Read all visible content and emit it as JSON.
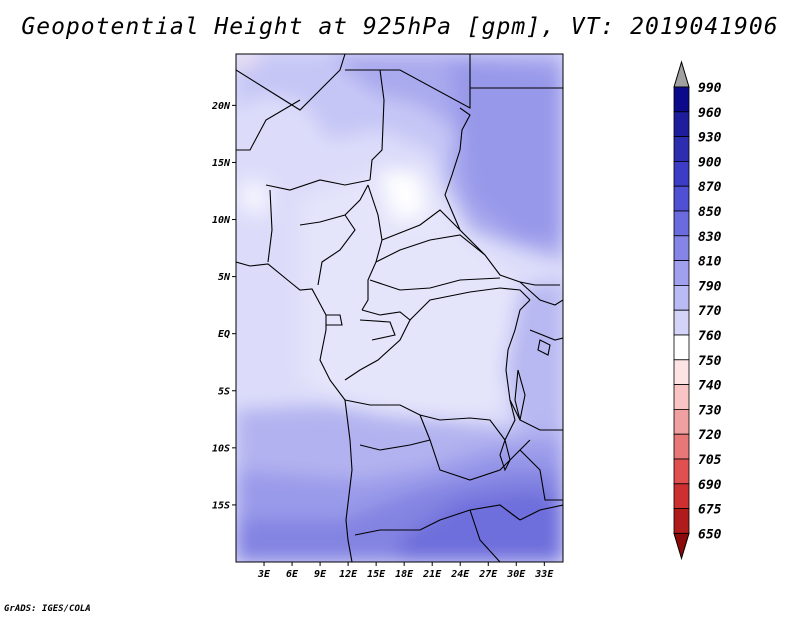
{
  "title": "Geopotential Height at 925hPa [gpm], VT: 2019041906",
  "footer": "GrADS: IGES/COLA",
  "map": {
    "lon_labels": [
      "3E",
      "6E",
      "9E",
      "12E",
      "15E",
      "18E",
      "21E",
      "24E",
      "27E",
      "30E",
      "33E"
    ],
    "lon_values": [
      3,
      6,
      9,
      12,
      15,
      18,
      21,
      24,
      27,
      30,
      33
    ],
    "lat_labels": [
      "20N",
      "15N",
      "10N",
      "5N",
      "EQ",
      "5S",
      "10S",
      "15S"
    ],
    "lat_values": [
      20,
      15,
      10,
      5,
      0,
      -5,
      -10,
      -15
    ],
    "lon_range": [
      0,
      35
    ],
    "lat_range": [
      -20,
      24.5
    ]
  },
  "colorbar": {
    "levels": [
      "990",
      "960",
      "930",
      "900",
      "870",
      "850",
      "830",
      "810",
      "790",
      "770",
      "760",
      "750",
      "740",
      "730",
      "720",
      "705",
      "690",
      "675",
      "650"
    ],
    "colors": [
      "#0a0a8a",
      "#1e1e9c",
      "#2d2db0",
      "#3c3cc6",
      "#5050d4",
      "#6b6be0",
      "#8585e8",
      "#a0a0ee",
      "#babaf4",
      "#d4d4f8",
      "#ffffff",
      "#fde3e3",
      "#f8c4c4",
      "#f0a0a0",
      "#e87878",
      "#e05050",
      "#cc3030",
      "#b01c1c",
      "#961010"
    ],
    "top_arrow": "#a0a0a0",
    "bottom_arrow": "#8c0a0a"
  }
}
